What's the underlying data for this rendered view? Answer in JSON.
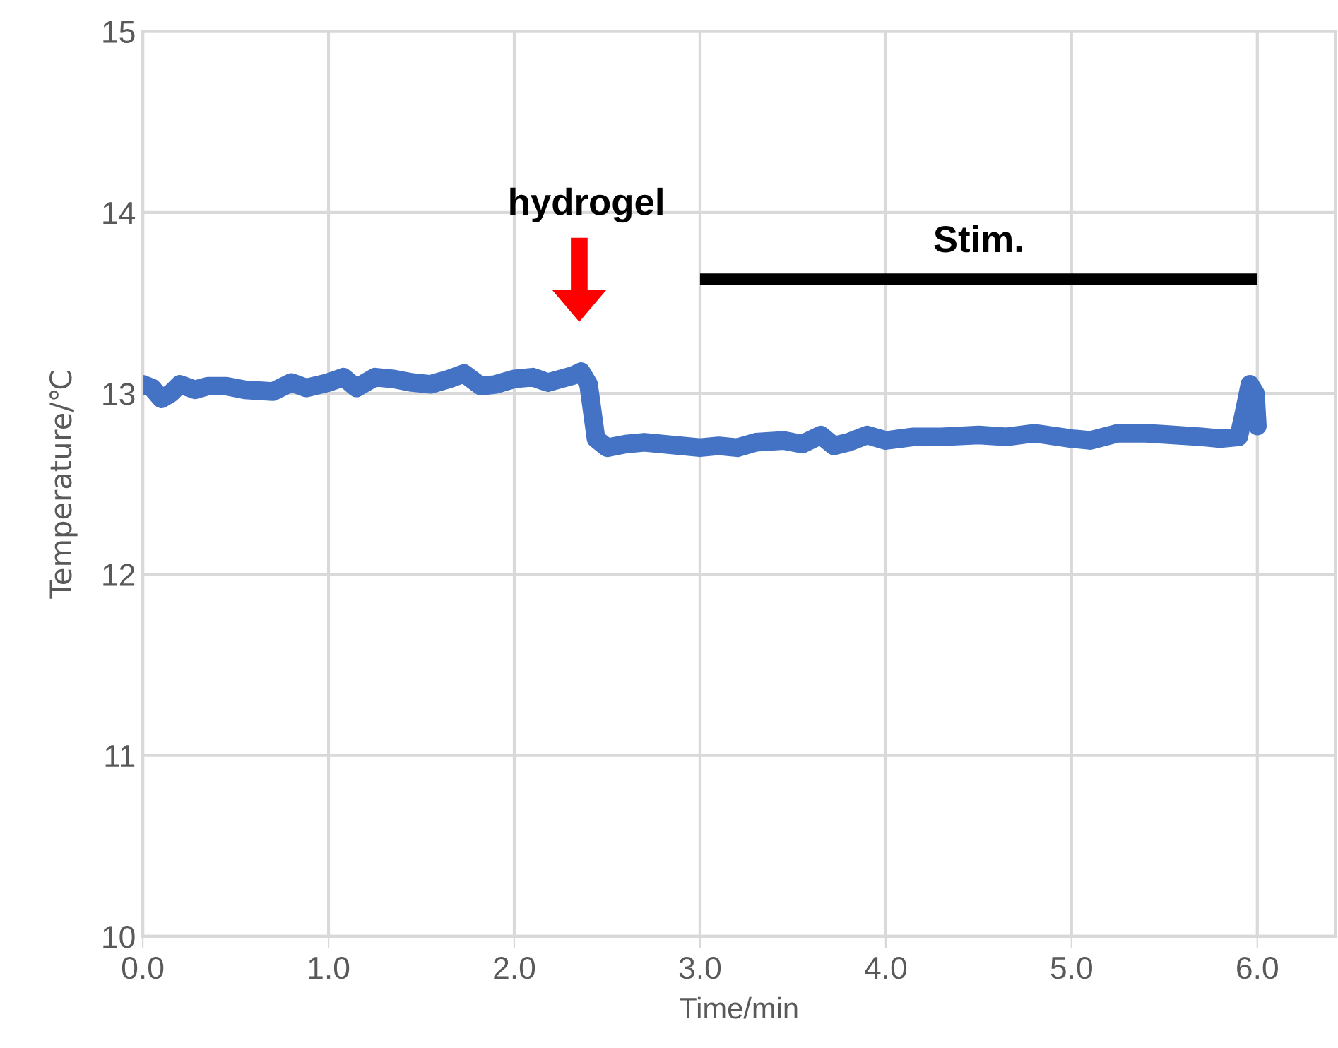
{
  "chart_data": {
    "type": "line",
    "xlabel": "Time/min",
    "ylabel": "Temperature/℃",
    "xlim": [
      0,
      6.42
    ],
    "ylim": [
      10,
      15
    ],
    "xticks": [
      {
        "value": 0,
        "label": "0.0"
      },
      {
        "value": 1,
        "label": "1.0"
      },
      {
        "value": 2,
        "label": "2.0"
      },
      {
        "value": 3,
        "label": "3.0"
      },
      {
        "value": 4,
        "label": "4.0"
      },
      {
        "value": 5,
        "label": "5.0"
      },
      {
        "value": 6,
        "label": "6.0"
      }
    ],
    "yticks": [
      10,
      11,
      12,
      13,
      14,
      15
    ],
    "grid": true,
    "marker": "none",
    "line_style": "solid",
    "annotations": [
      "hydrogel"
    ],
    "series": [
      {
        "color": "#4472c4",
        "x": [
          0.0,
          0.05,
          0.1,
          0.15,
          0.2,
          0.28,
          0.35,
          0.45,
          0.55,
          0.7,
          0.8,
          0.88,
          1.0,
          1.08,
          1.15,
          1.25,
          1.35,
          1.45,
          1.55,
          1.65,
          1.73,
          1.82,
          1.9,
          2.0,
          2.1,
          2.18,
          2.25,
          2.32,
          2.36,
          2.4,
          2.44,
          2.5,
          2.6,
          2.7,
          2.8,
          2.9,
          3.0,
          3.1,
          3.2,
          3.3,
          3.45,
          3.55,
          3.65,
          3.72,
          3.8,
          3.9,
          4.0,
          4.15,
          4.3,
          4.5,
          4.65,
          4.8,
          5.0,
          5.1,
          5.25,
          5.4,
          5.55,
          5.7,
          5.8,
          5.9,
          5.93,
          5.96,
          5.99,
          6.0
        ],
        "values": [
          13.05,
          13.03,
          12.97,
          13.0,
          13.05,
          13.02,
          13.04,
          13.04,
          13.02,
          13.01,
          13.06,
          13.03,
          13.06,
          13.09,
          13.03,
          13.09,
          13.08,
          13.06,
          13.05,
          13.08,
          13.11,
          13.04,
          13.05,
          13.08,
          13.09,
          13.06,
          13.08,
          13.1,
          13.12,
          13.05,
          12.75,
          12.7,
          12.72,
          12.73,
          12.72,
          12.71,
          12.7,
          12.71,
          12.7,
          12.73,
          12.74,
          12.72,
          12.77,
          12.71,
          12.73,
          12.77,
          12.74,
          12.76,
          12.76,
          12.77,
          12.76,
          12.78,
          12.75,
          12.74,
          12.78,
          12.78,
          12.77,
          12.76,
          12.75,
          12.76,
          12.9,
          13.05,
          13.0,
          12.82
        ]
      },
      {
        "name": "Stim.",
        "color": "#000000",
        "x": [
          3.0,
          6.0
        ],
        "values": [
          13.63,
          13.63
        ]
      }
    ]
  }
}
